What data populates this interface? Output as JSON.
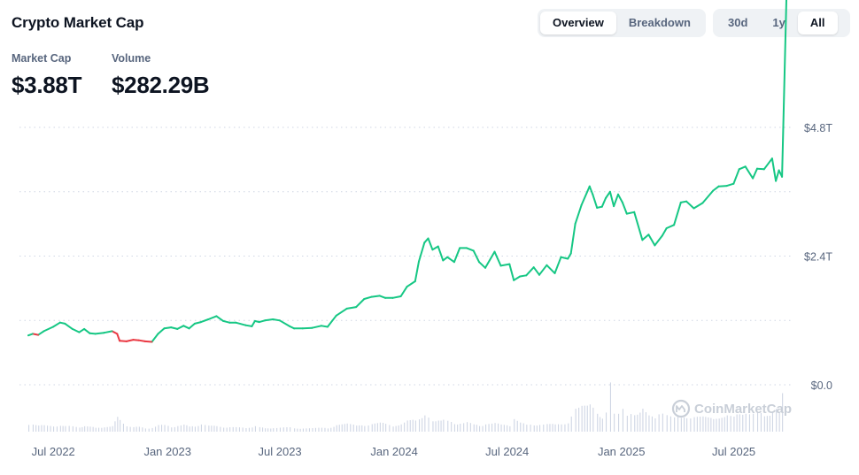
{
  "title": "Crypto Market Cap",
  "view_tabs": [
    {
      "label": "Overview",
      "active": true
    },
    {
      "label": "Breakdown",
      "active": false
    }
  ],
  "range_tabs": [
    {
      "label": "30d",
      "active": false
    },
    {
      "label": "1y",
      "active": false
    },
    {
      "label": "All",
      "active": true
    }
  ],
  "stats": {
    "market_cap": {
      "label": "Market Cap",
      "value": "$3.88T"
    },
    "volume": {
      "label": "Volume",
      "value": "$282.29B"
    }
  },
  "watermark": "CoinMarketCap",
  "colors": {
    "up": "#16c784",
    "down": "#ea3943",
    "grid": "#cfd6e4",
    "volume": "#cfd6e4",
    "text": "#58667e"
  },
  "chart_data": {
    "type": "line",
    "x_tick_labels": [
      "Jul 2022",
      "Jan 2023",
      "Jul 2023",
      "Jan 2024",
      "Jul 2024",
      "Jan 2025",
      "Jul 2025"
    ],
    "y_tick_labels": [
      "$0.0",
      "$2.4T",
      "$4.8T"
    ],
    "ylim": [
      0,
      4.8
    ],
    "y_unit": "T",
    "grid": true,
    "series_dates": [
      "2022-06-15",
      "2022-06-22",
      "2022-07-01",
      "2022-07-10",
      "2022-07-25",
      "2022-08-05",
      "2022-08-13",
      "2022-08-25",
      "2022-09-05",
      "2022-09-13",
      "2022-09-22",
      "2022-10-01",
      "2022-10-15",
      "2022-10-28",
      "2022-11-05",
      "2022-11-09",
      "2022-11-20",
      "2022-12-01",
      "2022-12-10",
      "2022-12-20",
      "2022-12-31",
      "2023-01-10",
      "2023-01-20",
      "2023-01-31",
      "2023-02-10",
      "2023-02-20",
      "2023-03-01",
      "2023-03-10",
      "2023-03-20",
      "2023-04-01",
      "2023-04-14",
      "2023-04-25",
      "2023-05-05",
      "2023-05-15",
      "2023-05-31",
      "2023-06-10",
      "2023-06-15",
      "2023-06-22",
      "2023-07-01",
      "2023-07-14",
      "2023-07-25",
      "2023-08-10",
      "2023-08-17",
      "2023-08-31",
      "2023-09-15",
      "2023-09-30",
      "2023-10-10",
      "2023-10-24",
      "2023-11-10",
      "2023-11-25",
      "2023-12-08",
      "2023-12-20",
      "2024-01-02",
      "2024-01-11",
      "2024-01-23",
      "2024-02-05",
      "2024-02-15",
      "2024-02-28",
      "2024-03-05",
      "2024-03-14",
      "2024-03-20",
      "2024-03-27",
      "2024-04-05",
      "2024-04-13",
      "2024-04-20",
      "2024-05-01",
      "2024-05-10",
      "2024-05-21",
      "2024-06-01",
      "2024-06-10",
      "2024-06-20",
      "2024-07-05",
      "2024-07-15",
      "2024-07-29",
      "2024-08-05",
      "2024-08-15",
      "2024-08-25",
      "2024-09-06",
      "2024-09-15",
      "2024-09-27",
      "2024-10-10",
      "2024-10-20",
      "2024-10-31",
      "2024-11-05",
      "2024-11-12",
      "2024-11-22",
      "2024-12-05",
      "2024-12-10",
      "2024-12-17",
      "2024-12-25",
      "2024-12-31",
      "2025-01-07",
      "2025-01-13",
      "2025-01-20",
      "2025-01-27",
      "2025-02-03",
      "2025-02-15",
      "2025-02-28",
      "2025-03-10",
      "2025-03-20",
      "2025-04-01",
      "2025-04-08",
      "2025-04-20",
      "2025-05-01",
      "2025-05-10",
      "2025-05-22",
      "2025-06-05",
      "2025-06-22",
      "2025-07-01",
      "2025-07-14",
      "2025-07-25",
      "2025-08-03",
      "2025-08-13",
      "2025-08-25",
      "2025-09-01",
      "2025-09-12",
      "2025-09-25",
      "2025-10-01",
      "2025-10-06",
      "2025-10-11",
      "2025-10-18"
    ],
    "series_values": [
      0.92,
      0.95,
      0.93,
      1.0,
      1.08,
      1.16,
      1.14,
      1.04,
      0.98,
      1.04,
      0.96,
      0.95,
      0.97,
      1.0,
      0.95,
      0.82,
      0.81,
      0.84,
      0.83,
      0.81,
      0.8,
      0.95,
      1.05,
      1.07,
      1.04,
      1.1,
      1.05,
      1.14,
      1.17,
      1.22,
      1.28,
      1.19,
      1.16,
      1.16,
      1.11,
      1.09,
      1.19,
      1.17,
      1.2,
      1.22,
      1.2,
      1.09,
      1.05,
      1.05,
      1.06,
      1.1,
      1.08,
      1.29,
      1.42,
      1.45,
      1.6,
      1.64,
      1.66,
      1.62,
      1.62,
      1.65,
      1.83,
      1.93,
      2.3,
      2.65,
      2.73,
      2.52,
      2.58,
      2.32,
      2.38,
      2.29,
      2.55,
      2.55,
      2.5,
      2.29,
      2.18,
      2.48,
      2.22,
      2.25,
      1.95,
      2.02,
      2.04,
      2.19,
      2.05,
      2.23,
      2.08,
      2.38,
      2.35,
      2.45,
      3.0,
      3.35,
      3.7,
      3.55,
      3.3,
      3.32,
      3.48,
      3.6,
      3.33,
      3.55,
      3.4,
      3.19,
      3.22,
      2.7,
      2.8,
      2.6,
      2.78,
      2.92,
      2.98,
      3.4,
      3.42,
      3.29,
      3.39,
      3.62,
      3.7,
      3.71,
      3.75,
      4.02,
      4.07,
      3.85,
      4.03,
      4.02,
      4.22,
      3.8,
      4.0,
      3.88
    ],
    "series_colors": [
      "up",
      "up",
      "down",
      "up",
      "up",
      "up",
      "up",
      "up",
      "up",
      "up",
      "up",
      "up",
      "up",
      "up",
      "down",
      "down",
      "down",
      "down",
      "down",
      "down",
      "down",
      "up",
      "up",
      "up",
      "up",
      "up",
      "up",
      "up",
      "up",
      "up",
      "up",
      "up",
      "up",
      "up",
      "up",
      "up",
      "up",
      "up",
      "up",
      "up",
      "up",
      "up",
      "up",
      "up",
      "up",
      "up",
      "up",
      "up",
      "up",
      "up",
      "up",
      "up",
      "up",
      "up",
      "up",
      "up",
      "up",
      "up",
      "up",
      "up",
      "up",
      "up",
      "up",
      "up",
      "up",
      "up",
      "up",
      "up",
      "up",
      "up",
      "up",
      "up",
      "up",
      "up",
      "up",
      "up",
      "up",
      "up",
      "up",
      "up",
      "up",
      "up",
      "up",
      "up",
      "up",
      "up",
      "up",
      "up",
      "up",
      "up",
      "up",
      "up",
      "up",
      "up",
      "up",
      "up",
      "up",
      "up",
      "up",
      "up",
      "up",
      "up",
      "up",
      "up",
      "up",
      "up",
      "up",
      "up",
      "up",
      "up",
      "up",
      "up",
      "up",
      "up",
      "up",
      "up",
      "up",
      "up",
      "up",
      "up",
      "up"
    ],
    "volume_values": [
      0.18,
      0.15,
      0.12,
      0.14,
      0.13,
      0.12,
      0.11,
      0.12,
      0.1,
      0.11,
      0.1,
      0.09,
      0.1,
      0.11,
      0.3,
      0.28,
      0.12,
      0.09,
      0.1,
      0.08,
      0.08,
      0.13,
      0.14,
      0.11,
      0.12,
      0.14,
      0.11,
      0.13,
      0.15,
      0.12,
      0.12,
      0.1,
      0.09,
      0.09,
      0.08,
      0.1,
      0.11,
      0.09,
      0.08,
      0.08,
      0.08,
      0.09,
      0.08,
      0.07,
      0.07,
      0.08,
      0.08,
      0.14,
      0.16,
      0.13,
      0.15,
      0.16,
      0.18,
      0.17,
      0.13,
      0.15,
      0.22,
      0.25,
      0.3,
      0.33,
      0.28,
      0.24,
      0.26,
      0.24,
      0.22,
      0.18,
      0.18,
      0.19,
      0.15,
      0.14,
      0.16,
      0.17,
      0.15,
      0.14,
      0.27,
      0.18,
      0.15,
      0.16,
      0.14,
      0.15,
      0.16,
      0.18,
      0.17,
      0.3,
      0.52,
      0.62,
      0.55,
      0.48,
      0.42,
      0.3,
      0.38,
      1.0,
      0.44,
      0.4,
      0.45,
      0.33,
      0.42,
      0.5,
      0.32,
      0.28,
      0.48,
      0.35,
      0.28,
      0.3,
      0.34,
      0.3,
      0.3,
      0.28,
      0.32,
      0.33,
      0.3,
      0.4,
      0.42,
      0.36,
      0.4,
      0.37,
      0.45,
      0.45,
      0.4,
      0.96,
      0.44
    ]
  }
}
